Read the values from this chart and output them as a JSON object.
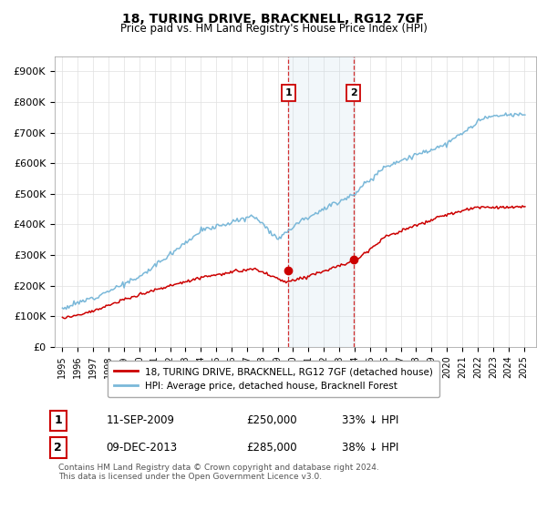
{
  "title": "18, TURING DRIVE, BRACKNELL, RG12 7GF",
  "subtitle": "Price paid vs. HM Land Registry's House Price Index (HPI)",
  "ylabel_ticks": [
    "£0",
    "£100K",
    "£200K",
    "£300K",
    "£400K",
    "£500K",
    "£600K",
    "£700K",
    "£800K",
    "£900K"
  ],
  "ytick_values": [
    0,
    100000,
    200000,
    300000,
    400000,
    500000,
    600000,
    700000,
    800000,
    900000
  ],
  "ylim": [
    0,
    950000
  ],
  "hpi_color": "#7ab8d9",
  "price_color": "#cc0000",
  "annotation1_year": 2009.7,
  "annotation1_price": 250000,
  "annotation2_year": 2013.92,
  "annotation2_price": 285000,
  "shade_x1": 2009.7,
  "shade_x2": 2013.92,
  "legend_line1": "18, TURING DRIVE, BRACKNELL, RG12 7GF (detached house)",
  "legend_line2": "HPI: Average price, detached house, Bracknell Forest",
  "table_row1": [
    "1",
    "11-SEP-2009",
    "£250,000",
    "33% ↓ HPI"
  ],
  "table_row2": [
    "2",
    "09-DEC-2013",
    "£285,000",
    "38% ↓ HPI"
  ],
  "footnote": "Contains HM Land Registry data © Crown copyright and database right 2024.\nThis data is licensed under the Open Government Licence v3.0.",
  "background_color": "#ffffff",
  "grid_color": "#e0e0e0",
  "xlim_left": 1994.5,
  "xlim_right": 2025.8
}
